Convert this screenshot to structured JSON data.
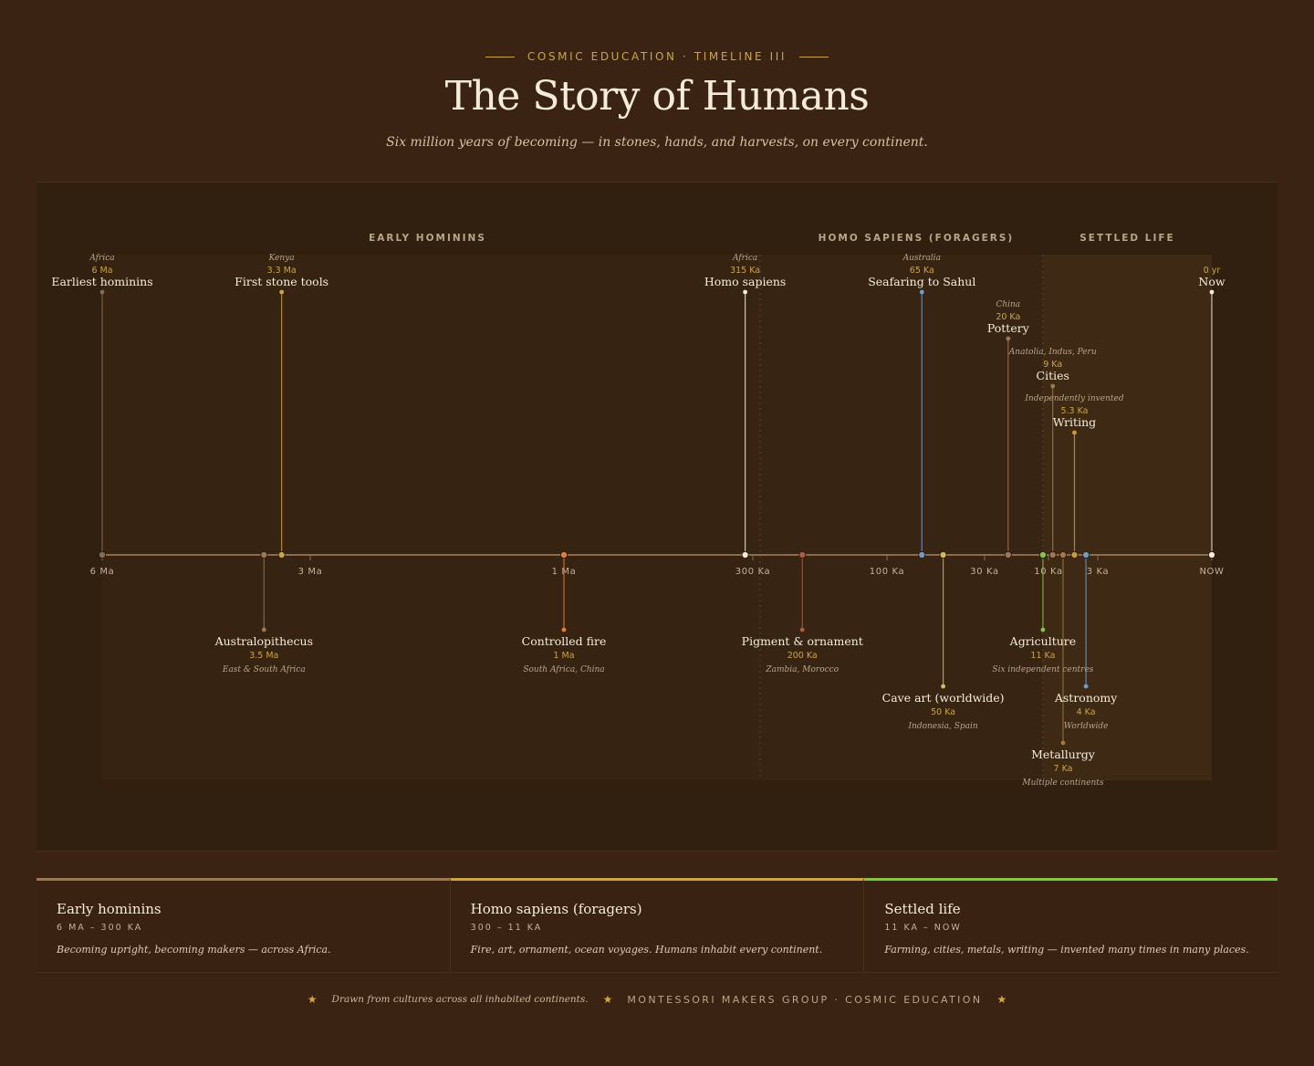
{
  "header": {
    "eyebrow": "COSMIC EDUCATION · TIMELINE III",
    "title": "The Story of Humans",
    "subtitle": "Six million years of becoming — in stones, hands, and harvests, on every continent."
  },
  "colors": {
    "background": "#3b2313",
    "panel": "#311f10",
    "accent_gold": "#c9a44a",
    "axis": "#8a6d4f",
    "early": "#9a7a56",
    "foragers": "#c9a44a",
    "settled": "#8cc14c",
    "fire": "#e0803a",
    "pigment": "#b25b3f",
    "blue": "#6f9cc7",
    "white": "#f6ecdb"
  },
  "chart_data": {
    "type": "timeline",
    "eras": [
      {
        "label": "EARLY HOMININS"
      },
      {
        "label": "HOMO SAPIENS (FORAGERS)"
      },
      {
        "label": "SETTLED LIFE"
      }
    ],
    "ticks": [
      {
        "label": "6 Ma",
        "years": 6000000
      },
      {
        "label": "3 Ma",
        "years": 3000000
      },
      {
        "label": "1 Ma",
        "years": 1000000
      },
      {
        "label": "300 Ka",
        "years": 300000
      },
      {
        "label": "100 Ka",
        "years": 100000
      },
      {
        "label": "30 Ka",
        "years": 30000
      },
      {
        "label": "10 Ka",
        "years": 10000
      },
      {
        "label": "3 Ka",
        "years": 3000
      },
      {
        "label": "NOW",
        "years": 0
      }
    ],
    "events": [
      {
        "name": "Earliest hominins",
        "date": "6 Ma",
        "place": "Africa",
        "years": 6000000,
        "side": "above",
        "color": "#8a6d4f"
      },
      {
        "name": "First stone tools",
        "date": "3.3 Ma",
        "place": "Kenya",
        "years": 3300000,
        "side": "above",
        "color": "#c9a44a"
      },
      {
        "name": "Australopithecus",
        "date": "3.5 Ma",
        "place": "East & South Africa",
        "years": 3500000,
        "side": "below",
        "color": "#9a7a56"
      },
      {
        "name": "Controlled fire",
        "date": "1 Ma",
        "place": "South Africa, China",
        "years": 1000000,
        "side": "below",
        "color": "#e0803a"
      },
      {
        "name": "Homo sapiens",
        "date": "315 Ka",
        "place": "Africa",
        "years": 315000,
        "side": "above",
        "color": "#f6ecdb"
      },
      {
        "name": "Pigment & ornament",
        "date": "200 Ka",
        "place": "Zambia, Morocco",
        "years": 200000,
        "side": "below",
        "color": "#b25b3f"
      },
      {
        "name": "Seafaring to Sahul",
        "date": "65 Ka",
        "place": "Australia",
        "years": 65000,
        "side": "above",
        "color": "#6f9cc7"
      },
      {
        "name": "Cave art (worldwide)",
        "date": "50 Ka",
        "place": "Indonesia, Spain",
        "years": 50000,
        "side": "below",
        "color": "#d8b85a"
      },
      {
        "name": "Pottery",
        "date": "20 Ka",
        "place": "China",
        "years": 20000,
        "side": "above",
        "color": "#9a7a56"
      },
      {
        "name": "Agriculture",
        "date": "11 Ka",
        "place": "Six independent centres",
        "years": 11000,
        "side": "below",
        "color": "#8cc14c"
      },
      {
        "name": "Cities",
        "date": "9 Ka",
        "place": "Anatolia, Indus, Peru",
        "years": 9000,
        "side": "above",
        "color": "#9a7a56"
      },
      {
        "name": "Metallurgy",
        "date": "7 Ka",
        "place": "Multiple continents",
        "years": 7000,
        "side": "below",
        "color": "#a0784a"
      },
      {
        "name": "Writing",
        "date": "5.3 Ka",
        "place": "Independently invented",
        "years": 5300,
        "side": "above",
        "color": "#d09a3a"
      },
      {
        "name": "Astronomy",
        "date": "4 Ka",
        "place": "Worldwide",
        "years": 4000,
        "side": "below",
        "color": "#6f9cc7"
      },
      {
        "name": "Now",
        "date": "0 yr",
        "place": "",
        "years": 0,
        "side": "above",
        "color": "#f6ecdb"
      }
    ]
  },
  "era_cards": [
    {
      "name": "Early hominins",
      "range": "6 MA – 300 KA",
      "desc": "Becoming upright, becoming makers — across Africa.",
      "color": "#9a7a56"
    },
    {
      "name": "Homo sapiens (foragers)",
      "range": "300 – 11 KA",
      "desc": "Fire, art, ornament, ocean voyages. Humans inhabit every continent.",
      "color": "#c9a44a"
    },
    {
      "name": "Settled life",
      "range": "11 KA – NOW",
      "desc": "Farming, cities, metals, writing — invented many times in many places.",
      "color": "#8cc14c"
    }
  ],
  "footer": {
    "note": "Drawn from cultures across all inhabited continents.",
    "credit": "MONTESSORI MAKERS GROUP · COSMIC EDUCATION",
    "star": "★"
  }
}
